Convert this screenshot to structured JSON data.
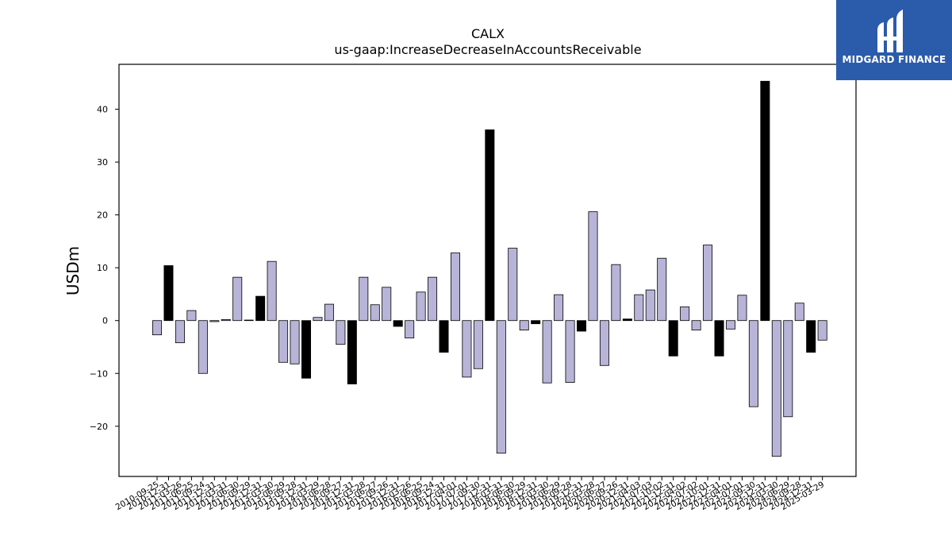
{
  "brand": {
    "name": "MIDGARD FINANCE",
    "background": "#2b5bab"
  },
  "chart_data": {
    "type": "bar",
    "title": "CALX",
    "subtitle": "us-gaap:IncreaseDecreaseInAccountsReceivable",
    "ylabel": "USDm",
    "xlabel": "",
    "ylim": [
      -29.5,
      48.5
    ],
    "yticks": [
      -20,
      -10,
      0,
      10,
      20,
      30,
      40
    ],
    "grid": false,
    "colors": {
      "default": "#b8b4d8",
      "highlight": "#000000"
    },
    "categories": [
      "2010-09-25",
      "2010-12-31",
      "2011-03-26",
      "2011-06-25",
      "2011-09-24",
      "2011-12-31",
      "2012-03-31",
      "2012-06-30",
      "2012-09-29",
      "2012-12-31",
      "2013-03-30",
      "2013-06-29",
      "2013-09-28",
      "2013-12-31",
      "2014-03-29",
      "2014-06-28",
      "2014-09-27",
      "2014-12-31",
      "2015-03-28",
      "2015-06-27",
      "2015-09-26",
      "2015-12-31",
      "2016-03-26",
      "2016-06-25",
      "2016-09-24",
      "2016-12-31",
      "2017-04-01",
      "2017-07-01",
      "2017-09-30",
      "2017-12-31",
      "2018-03-31",
      "2018-06-30",
      "2018-09-29",
      "2018-12-31",
      "2019-03-30",
      "2019-06-29",
      "2019-09-28",
      "2019-12-31",
      "2020-03-28",
      "2020-06-27",
      "2020-09-26",
      "2020-12-31",
      "2021-04-03",
      "2021-07-03",
      "2021-10-02",
      "2021-12-31",
      "2022-04-02",
      "2022-07-02",
      "2022-10-01",
      "2022-12-31",
      "2023-04-01",
      "2023-07-01",
      "2023-09-30",
      "2023-12-31",
      "2024-03-30",
      "2024-06-29",
      "2024-09-28",
      "2024-12-31",
      "2025-03-29"
    ],
    "values": [
      -2.7,
      10.4,
      -4.2,
      1.9,
      -10.0,
      -0.2,
      0.2,
      8.2,
      0.1,
      4.6,
      11.2,
      -7.9,
      -8.2,
      -10.9,
      0.6,
      3.1,
      -4.5,
      -12.0,
      8.2,
      3.0,
      6.3,
      -1.1,
      -3.3,
      5.4,
      8.2,
      -6.0,
      12.8,
      -10.7,
      -9.1,
      36.1,
      -25.1,
      13.7,
      -1.8,
      -0.6,
      -11.8,
      4.9,
      -11.7,
      -2.0,
      20.6,
      -8.5,
      10.6,
      0.3,
      4.9,
      5.8,
      11.8,
      -6.7,
      2.6,
      -1.8,
      14.3,
      -6.7,
      -1.6,
      4.8,
      -16.3,
      45.3,
      -25.7,
      -18.2,
      3.3,
      -6.0,
      -3.7
    ],
    "highlight": [
      1,
      9,
      13,
      17,
      21,
      25,
      29,
      33,
      37,
      41,
      45,
      49,
      53,
      57
    ]
  }
}
